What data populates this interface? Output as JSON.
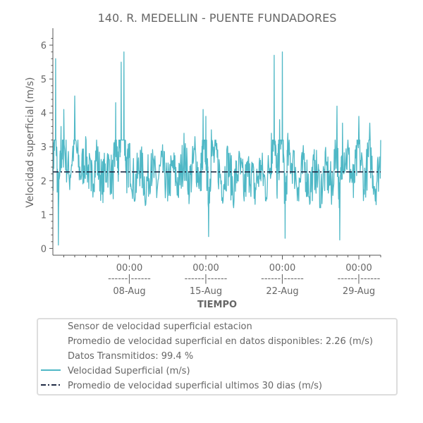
{
  "chart_data": {
    "type": "line",
    "title": "140. R. MEDELLIN - PUENTE FUNDADORES",
    "xlabel": "TIEMPO",
    "ylabel": "Velocidad superficial (m/s)",
    "ylim": [
      -0.2,
      6.5
    ],
    "xlim": [
      "2023-08-01T00:00",
      "2023-08-31T00:00"
    ],
    "y_ticks": [
      0,
      1,
      2,
      3,
      4,
      5,
      6
    ],
    "y_ticks_labels": [
      "0",
      "1",
      "2",
      "3",
      "4",
      "5",
      "6"
    ],
    "x_ticks": [
      {
        "date": "2023-08-08T00:00",
        "time": "00:00",
        "sep": "------|------",
        "day": "08-Aug"
      },
      {
        "date": "2023-08-15T00:00",
        "time": "00:00",
        "sep": "------|------",
        "day": "15-Aug"
      },
      {
        "date": "2023-08-22T00:00",
        "time": "00:00",
        "sep": "------|------",
        "day": "22-Aug"
      },
      {
        "date": "2023-08-29T00:00",
        "time": "00:00",
        "sep": "------|------",
        "day": "29-Aug"
      }
    ],
    "legend_placement": "below",
    "legend": [
      {
        "label": "Sensor de velocidad superficial estacion",
        "marker": "none"
      },
      {
        "label": "Promedio de velocidad superficial en datos disponibles: 2.26 (m/s)",
        "marker": "none"
      },
      {
        "label": "Datos Transmitidos: 99.4 %",
        "marker": "none"
      },
      {
        "label": "Velocidad Superficial (m/s)",
        "marker": "line"
      },
      {
        "label": "Promedio de velocidad superficial ultimos 30 dias (m/s)",
        "marker": "dashdot"
      }
    ],
    "series": [
      {
        "name": "Velocidad Superficial (m/s)",
        "color": "#4fb8c6",
        "points": [
          [
            "2023-08-01T00:00",
            2.4
          ],
          [
            "2023-08-01T06:00",
            5.6
          ],
          [
            "2023-08-01T12:00",
            0.1
          ],
          [
            "2023-08-01T18:00",
            3.6
          ],
          [
            "2023-08-02T00:00",
            4.1
          ],
          [
            "2023-08-02T12:00",
            2.0
          ],
          [
            "2023-08-03T00:00",
            4.5
          ],
          [
            "2023-08-03T12:00",
            2.2
          ],
          [
            "2023-08-04T00:00",
            3.3
          ],
          [
            "2023-08-04T12:00",
            1.7
          ],
          [
            "2023-08-05T00:00",
            3.2
          ],
          [
            "2023-08-05T12:00",
            1.6
          ],
          [
            "2023-08-06T00:00",
            2.8
          ],
          [
            "2023-08-06T12:00",
            1.8
          ],
          [
            "2023-08-06T18:00",
            4.3
          ],
          [
            "2023-08-07T00:00",
            2.5
          ],
          [
            "2023-08-07T06:00",
            5.5
          ],
          [
            "2023-08-07T12:00",
            5.8
          ],
          [
            "2023-08-07T18:00",
            2.2
          ],
          [
            "2023-08-08T00:00",
            3.1
          ],
          [
            "2023-08-08T12:00",
            1.4
          ],
          [
            "2023-08-09T00:00",
            2.9
          ],
          [
            "2023-08-09T12:00",
            1.3
          ],
          [
            "2023-08-10T00:00",
            2.8
          ],
          [
            "2023-08-10T12:00",
            1.5
          ],
          [
            "2023-08-11T00:00",
            2.7
          ],
          [
            "2023-08-11T12:00",
            1.4
          ],
          [
            "2023-08-12T00:00",
            2.6
          ],
          [
            "2023-08-12T12:00",
            1.5
          ],
          [
            "2023-08-13T00:00",
            3.4
          ],
          [
            "2023-08-13T12:00",
            1.6
          ],
          [
            "2023-08-14T00:00",
            3.3
          ],
          [
            "2023-08-14T12:00",
            1.7
          ],
          [
            "2023-08-14T18:00",
            4.1
          ],
          [
            "2023-08-15T00:00",
            3.9
          ],
          [
            "2023-08-15T06:00",
            0.35
          ],
          [
            "2023-08-15T12:00",
            3.5
          ],
          [
            "2023-08-16T00:00",
            3.1
          ],
          [
            "2023-08-16T12:00",
            1.5
          ],
          [
            "2023-08-17T00:00",
            3.0
          ],
          [
            "2023-08-17T12:00",
            1.3
          ],
          [
            "2023-08-18T00:00",
            2.6
          ],
          [
            "2023-08-18T12:00",
            1.4
          ],
          [
            "2023-08-19T00:00",
            2.5
          ],
          [
            "2023-08-19T12:00",
            1.3
          ],
          [
            "2023-08-20T00:00",
            2.6
          ],
          [
            "2023-08-20T12:00",
            1.4
          ],
          [
            "2023-08-21T00:00",
            3.4
          ],
          [
            "2023-08-21T06:00",
            5.7
          ],
          [
            "2023-08-21T12:00",
            1.6
          ],
          [
            "2023-08-21T18:00",
            3.8
          ],
          [
            "2023-08-22T00:00",
            5.8
          ],
          [
            "2023-08-22T06:00",
            0.3
          ],
          [
            "2023-08-22T12:00",
            3.4
          ],
          [
            "2023-08-23T00:00",
            2.9
          ],
          [
            "2023-08-23T12:00",
            1.4
          ],
          [
            "2023-08-24T00:00",
            2.8
          ],
          [
            "2023-08-24T12:00",
            1.3
          ],
          [
            "2023-08-25T00:00",
            2.6
          ],
          [
            "2023-08-25T12:00",
            1.2
          ],
          [
            "2023-08-26T00:00",
            2.5
          ],
          [
            "2023-08-26T12:00",
            1.3
          ],
          [
            "2023-08-27T00:00",
            4.2
          ],
          [
            "2023-08-27T06:00",
            0.25
          ],
          [
            "2023-08-27T12:00",
            3.7
          ],
          [
            "2023-08-28T00:00",
            3.2
          ],
          [
            "2023-08-28T12:00",
            1.5
          ],
          [
            "2023-08-29T00:00",
            3.9
          ],
          [
            "2023-08-29T12:00",
            1.6
          ],
          [
            "2023-08-30T00:00",
            3.7
          ],
          [
            "2023-08-30T12:00",
            1.4
          ],
          [
            "2023-08-31T00:00",
            3.2
          ]
        ]
      },
      {
        "name": "Promedio de velocidad superficial ultimos 30 dias (m/s)",
        "color": "#1f2a44",
        "style": "dashdot",
        "points": [
          [
            "2023-08-01T00:00",
            2.26
          ],
          [
            "2023-08-31T00:00",
            2.26
          ]
        ]
      }
    ]
  }
}
